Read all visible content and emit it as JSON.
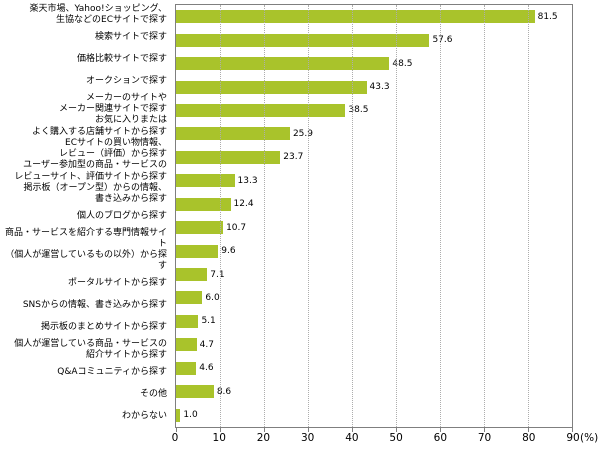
{
  "chart_data": {
    "type": "bar",
    "orientation": "horizontal",
    "title": "",
    "categories": [
      "楽天市場、Yahoo!ショッピング、\n生協などのECサイトで探す",
      "検索サイトで探す",
      "価格比較サイトで探す",
      "オークションで探す",
      "メーカーのサイトや\nメーカー関連サイトで探す",
      "お気に入りまたは\nよく購入する店舗サイトから探す",
      "ECサイトの買い物情報、\nレビュー（評価）から探す",
      "ユーザー参加型の商品・サービスの\nレビューサイト、評価サイトから探す",
      "掲示板（オープン型）からの情報、\n書き込みから探す",
      "個人のブログから探す",
      "商品・サービスを紹介する専門情報サイト\n（個人が運営しているもの以外）から探す",
      "ポータルサイトから探す",
      "SNSからの情報、書き込みから探す",
      "掲示板のまとめサイトから探す",
      "個人が運営している商品・サービスの\n紹介サイトから探す",
      "Q&Aコミュニティから探す",
      "その他",
      "わからない"
    ],
    "values": [
      81.5,
      57.6,
      48.5,
      43.3,
      38.5,
      25.9,
      23.7,
      13.3,
      12.4,
      10.7,
      9.6,
      7.1,
      6.0,
      5.1,
      4.7,
      4.6,
      8.6,
      1.0
    ],
    "value_labels": [
      "81.5",
      "57.6",
      "48.5",
      "43.3",
      "38.5",
      "25.9",
      "23.7",
      "13.3",
      "12.4",
      "10.7",
      "9.6",
      "7.1",
      "6.0",
      "5.1",
      "4.7",
      "4.6",
      "8.6",
      "1.0"
    ],
    "xlabel": "(%)",
    "xlim": [
      0,
      90
    ],
    "xticks": [
      0,
      10,
      20,
      30,
      40,
      50,
      60,
      70,
      80,
      90
    ],
    "bar_color": "#a9c32b",
    "grid": true,
    "legend": false
  }
}
